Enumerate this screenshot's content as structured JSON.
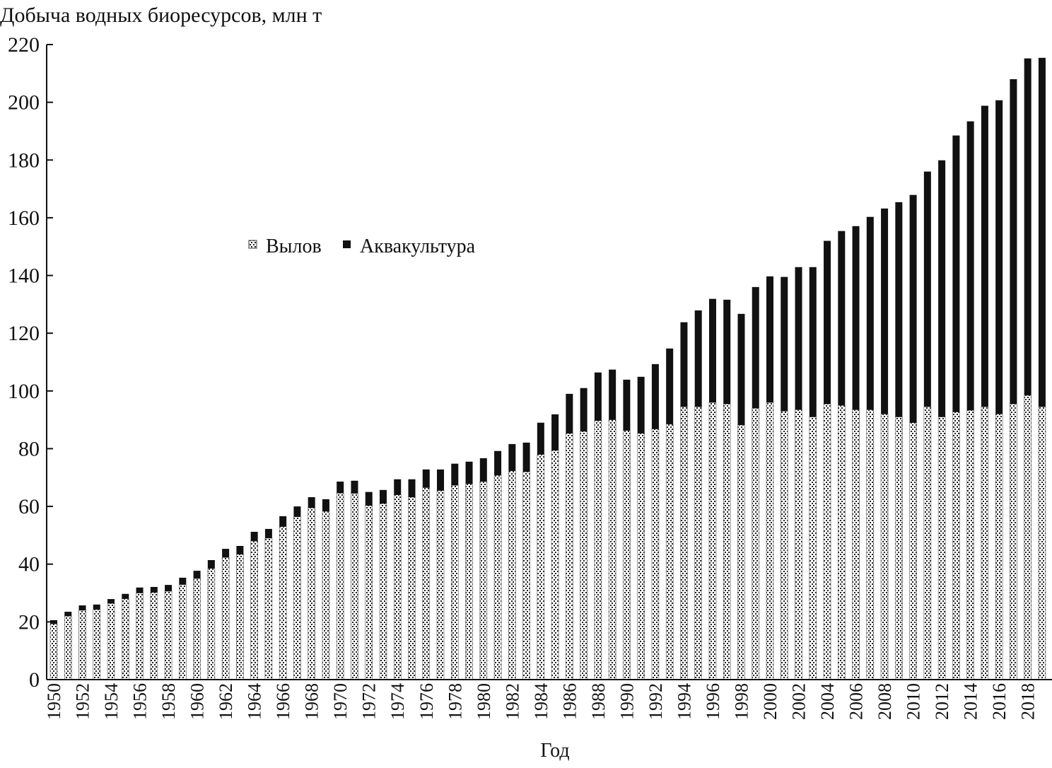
{
  "chart_data": {
    "type": "bar",
    "stacked": true,
    "title": "Добыча водных биоресурсов, млн т",
    "xlabel": "Год",
    "ylabel": "",
    "ylim": [
      0,
      220
    ],
    "yticks": [
      0,
      20,
      40,
      60,
      80,
      100,
      120,
      140,
      160,
      180,
      200,
      220
    ],
    "legend_position": "center-left",
    "grid": false,
    "categories": [
      1950,
      1951,
      1952,
      1953,
      1954,
      1955,
      1956,
      1957,
      1958,
      1959,
      1960,
      1961,
      1962,
      1963,
      1964,
      1965,
      1966,
      1967,
      1968,
      1969,
      1970,
      1971,
      1972,
      1973,
      1974,
      1975,
      1976,
      1977,
      1978,
      1979,
      1980,
      1981,
      1982,
      1983,
      1984,
      1985,
      1986,
      1987,
      1988,
      1989,
      1990,
      1991,
      1992,
      1993,
      1994,
      1995,
      1996,
      1997,
      1998,
      1999,
      2000,
      2001,
      2002,
      2003,
      2004,
      2005,
      2006,
      2007,
      2008,
      2009,
      2010,
      2011,
      2012,
      2013,
      2014,
      2015,
      2016,
      2017,
      2018,
      2019
    ],
    "xtick_labels": [
      1950,
      1952,
      1954,
      1956,
      1958,
      1960,
      1962,
      1964,
      1966,
      1968,
      1970,
      1972,
      1974,
      1976,
      1978,
      1980,
      1982,
      1984,
      1986,
      1988,
      1990,
      1992,
      1994,
      1996,
      1998,
      2000,
      2002,
      2004,
      2006,
      2008,
      2010,
      2012,
      2014,
      2016,
      2018
    ],
    "series": [
      {
        "name": "Вылов",
        "color": "#ffffff",
        "pattern": "dotted",
        "values": [
          19.3,
          22,
          24,
          24.3,
          26.4,
          28,
          30,
          30.2,
          30.6,
          32.9,
          35,
          38.5,
          42.3,
          43.4,
          48,
          49,
          53,
          56.4,
          59.5,
          58.3,
          64.6,
          64.5,
          60.3,
          61,
          64,
          63.2,
          66.5,
          65.5,
          67.3,
          67.8,
          68.6,
          70.8,
          72.3,
          72,
          78,
          79.4,
          85.3,
          86,
          89.7,
          90,
          86.3,
          85.3,
          86.8,
          88.5,
          94.5,
          94.5,
          96,
          95.5,
          88.2,
          94,
          96,
          93,
          93.5,
          91,
          95.5,
          95,
          93.5,
          93.5,
          92,
          91,
          89,
          94.5,
          91,
          92.7,
          93.3,
          94.5,
          92,
          95.5,
          98.5,
          94.5
        ]
      },
      {
        "name": "Аквакультура",
        "color": "#111111",
        "values": [
          1.3,
          1.5,
          1.7,
          1.7,
          1.5,
          1.7,
          1.9,
          1.9,
          2.2,
          2.4,
          2.7,
          2.9,
          3,
          2.9,
          3.2,
          3.2,
          3.6,
          3.6,
          3.7,
          4.2,
          4,
          4.4,
          4.7,
          4.7,
          5.4,
          6.2,
          6.3,
          7.3,
          7.5,
          7.7,
          8.1,
          8.4,
          9.3,
          10.1,
          11,
          12.5,
          13.7,
          15,
          16.7,
          17.4,
          17.6,
          19.6,
          22.5,
          26.2,
          29.3,
          33.4,
          35.9,
          36.1,
          38.5,
          42,
          43.7,
          46.5,
          49.4,
          51.9,
          56.5,
          60.4,
          63.6,
          66.8,
          71.2,
          74.4,
          78.9,
          81.5,
          88.9,
          95.8,
          100.1,
          104.3,
          108.7,
          112.5,
          116.7,
          120.9
        ]
      }
    ]
  }
}
